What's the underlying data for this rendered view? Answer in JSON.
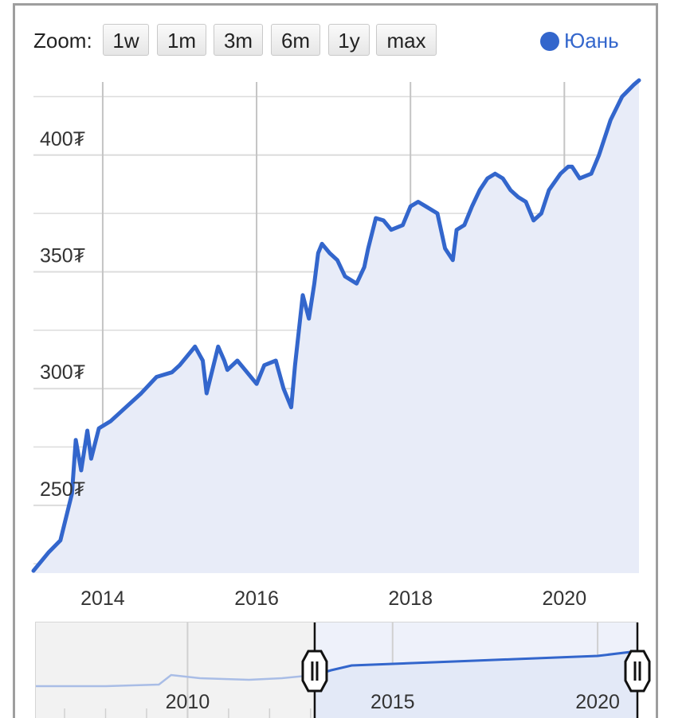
{
  "toolbar": {
    "zoom_label": "Zoom:",
    "buttons": [
      "1w",
      "1m",
      "3m",
      "6m",
      "1y",
      "max"
    ]
  },
  "legend": {
    "label": "Юань",
    "color": "#3366cc"
  },
  "colors": {
    "line": "#3366cc",
    "fill": "#e8ecf8",
    "grid": "#dcdcdc",
    "vgrid": "#c4c4c4"
  },
  "icons": {
    "range_handle": "grip-handle-icon"
  },
  "chart_data": [
    {
      "type": "line",
      "y_tick_labels": [
        "250₮",
        "300₮",
        "350₮",
        "400₮"
      ],
      "y_ticks": [
        250,
        300,
        350,
        400
      ],
      "x_tick_labels": [
        "2014",
        "2016",
        "2018",
        "2020"
      ],
      "x_ticks": [
        2014,
        2016,
        2018,
        2020
      ],
      "xlim": [
        2013.1,
        2020.97
      ],
      "ylim": [
        221,
        434
      ],
      "grid": true,
      "legend_position": "top-right",
      "series": [
        {
          "name": "Юань",
          "x": [
            2013.1,
            2013.3,
            2013.45,
            2013.6,
            2013.65,
            2013.72,
            2013.8,
            2013.85,
            2013.95,
            2014.1,
            2014.3,
            2014.5,
            2014.7,
            2014.9,
            2015.0,
            2015.2,
            2015.3,
            2015.35,
            2015.5,
            2015.58,
            2015.62,
            2015.75,
            2015.85,
            2016.0,
            2016.1,
            2016.25,
            2016.35,
            2016.45,
            2016.5,
            2016.6,
            2016.68,
            2016.75,
            2016.8,
            2016.85,
            2016.95,
            2017.05,
            2017.15,
            2017.3,
            2017.4,
            2017.45,
            2017.55,
            2017.65,
            2017.75,
            2017.9,
            2018.0,
            2018.1,
            2018.2,
            2018.35,
            2018.45,
            2018.55,
            2018.6,
            2018.7,
            2018.8,
            2018.9,
            2019.0,
            2019.1,
            2019.2,
            2019.3,
            2019.4,
            2019.5,
            2019.6,
            2019.7,
            2019.8,
            2019.95,
            2020.05,
            2020.1,
            2020.2,
            2020.35,
            2020.45,
            2020.6,
            2020.75,
            2020.9,
            2020.97
          ],
          "y": [
            222,
            230,
            235,
            255,
            278,
            265,
            282,
            270,
            283,
            286,
            292,
            298,
            305,
            307,
            310,
            318,
            312,
            298,
            318,
            312,
            308,
            312,
            308,
            302,
            310,
            312,
            300,
            292,
            310,
            340,
            330,
            345,
            358,
            362,
            358,
            355,
            348,
            345,
            352,
            360,
            373,
            372,
            368,
            370,
            378,
            380,
            378,
            375,
            360,
            355,
            368,
            370,
            378,
            385,
            390,
            392,
            390,
            385,
            382,
            380,
            372,
            375,
            385,
            392,
            395,
            395,
            390,
            392,
            400,
            415,
            425,
            430,
            432
          ]
        }
      ]
    },
    {
      "type": "area",
      "x_tick_labels": [
        "2010",
        "2015",
        "2020"
      ],
      "x_ticks": [
        2010,
        2015,
        2020
      ],
      "xlim": [
        2006.3,
        2020.97
      ],
      "selected_range": [
        2013.1,
        2020.97
      ]
    }
  ]
}
